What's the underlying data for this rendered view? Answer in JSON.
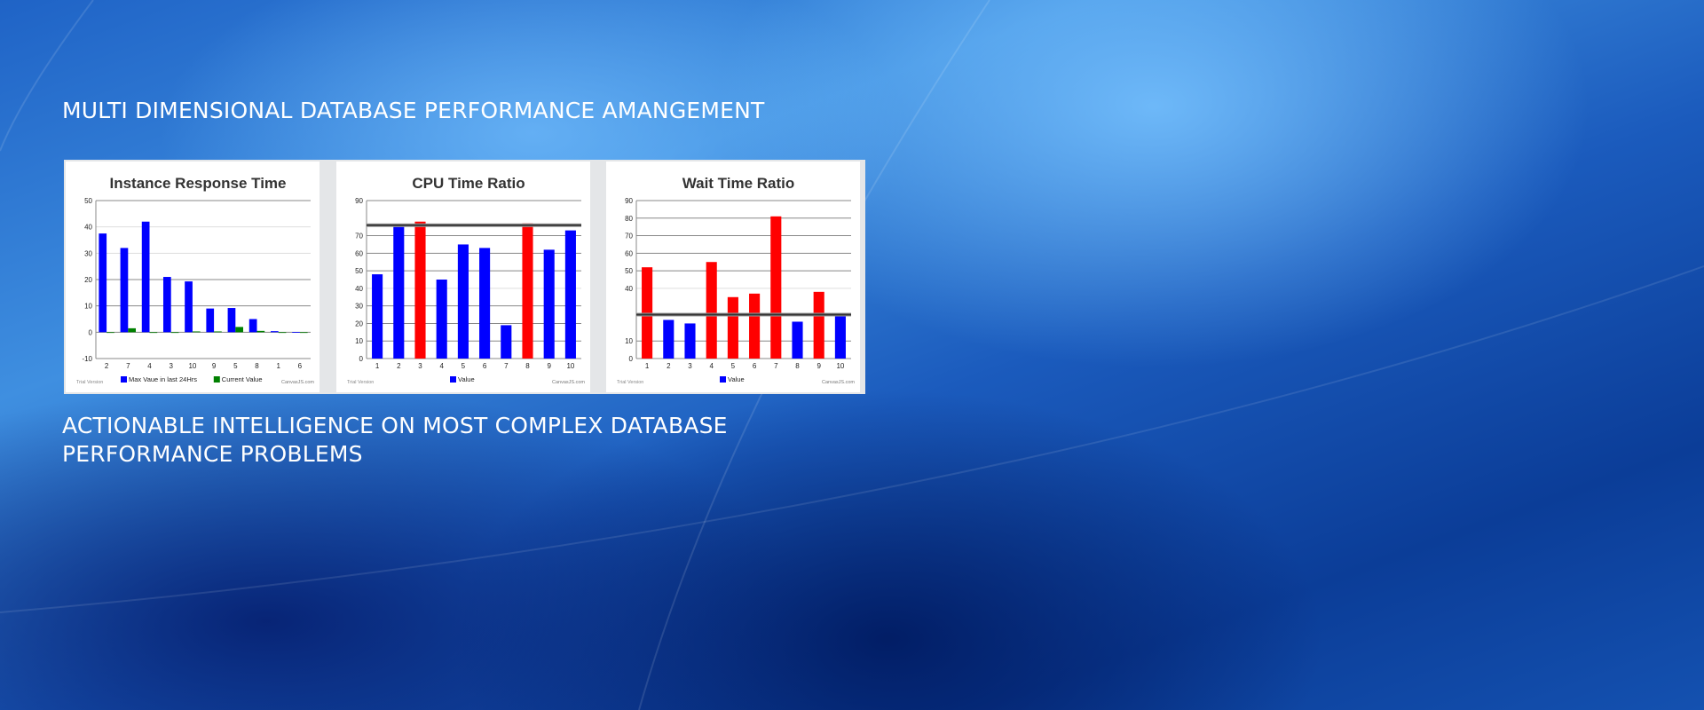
{
  "headline": "MULTI DIMENSIONAL DATABASE PERFORMANCE AMANGEMENT",
  "subheadline": "ACTIONABLE INTELLIGENCE ON MOST COMPLEX DATABASE PERFORMANCE PROBLEMS",
  "colors": {
    "blue": "#0000ff",
    "green": "#008000",
    "red": "#ff0000",
    "threshold": "#333333"
  },
  "chart_data": [
    {
      "type": "bar",
      "title": "Instance Response Time",
      "categories": [
        "2",
        "7",
        "4",
        "3",
        "10",
        "9",
        "5",
        "8",
        "1",
        "6"
      ],
      "ylim": [
        -10,
        50
      ],
      "yticks": [
        -10,
        0,
        10,
        20,
        30,
        40,
        50
      ],
      "series": [
        {
          "name": "Max Vaue in last 24Hrs",
          "color": "#0000ff",
          "values": [
            37.5,
            32,
            42,
            21,
            19.3,
            9,
            9.2,
            5,
            0.4,
            0.1
          ]
        },
        {
          "name": "Current Value",
          "color": "#008000",
          "values": [
            0,
            1.5,
            0,
            0,
            0.3,
            0.3,
            2,
            0.5,
            0,
            0
          ]
        }
      ],
      "legend": "bottom",
      "footer_left": "Trial Version",
      "footer_right": "CanvasJS.com"
    },
    {
      "type": "bar",
      "title": "CPU Time Ratio",
      "categories": [
        "1",
        "2",
        "3",
        "4",
        "5",
        "6",
        "7",
        "8",
        "9",
        "10"
      ],
      "ylim": [
        0,
        90
      ],
      "yticks": [
        0,
        10,
        20,
        30,
        40,
        50,
        60,
        70,
        90
      ],
      "threshold": 76,
      "series": [
        {
          "name": "Value",
          "color": "#0000ff",
          "values": [
            48,
            75,
            78,
            45,
            65,
            63,
            19,
            77,
            62,
            73
          ],
          "point_colors": [
            "#0000ff",
            "#0000ff",
            "#ff0000",
            "#0000ff",
            "#0000ff",
            "#0000ff",
            "#0000ff",
            "#ff0000",
            "#0000ff",
            "#0000ff"
          ]
        }
      ],
      "legend": "bottom",
      "footer_left": "Trial Version",
      "footer_right": "CanvasJS.com"
    },
    {
      "type": "bar",
      "title": "Wait Time Ratio",
      "categories": [
        "1",
        "2",
        "3",
        "4",
        "5",
        "6",
        "7",
        "8",
        "9",
        "10"
      ],
      "ylim": [
        0,
        90
      ],
      "yticks": [
        0,
        10,
        40,
        50,
        60,
        70,
        80,
        90
      ],
      "threshold": 25,
      "series": [
        {
          "name": "Value",
          "color": "#0000ff",
          "values": [
            52,
            22,
            20,
            55,
            35,
            37,
            81,
            21,
            38,
            25
          ],
          "point_colors": [
            "#ff0000",
            "#0000ff",
            "#0000ff",
            "#ff0000",
            "#ff0000",
            "#ff0000",
            "#ff0000",
            "#0000ff",
            "#ff0000",
            "#0000ff"
          ]
        }
      ],
      "legend": "bottom",
      "footer_left": "Trial Version",
      "footer_right": "CanvasJS.com"
    }
  ]
}
